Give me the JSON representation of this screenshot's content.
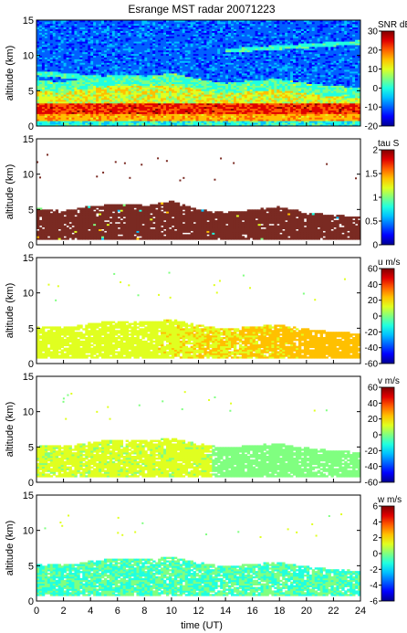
{
  "title": "Esrange MST radar 20071223",
  "xlabel": "time (UT)",
  "x_ticks": [
    0,
    2,
    4,
    6,
    8,
    10,
    12,
    14,
    16,
    18,
    20,
    22,
    24
  ],
  "y_ticks": [
    0,
    5,
    10,
    15
  ],
  "colors": {
    "jet": [
      "#00008f",
      "#0000ff",
      "#0060ff",
      "#00c0ff",
      "#20ffe0",
      "#80ff80",
      "#e0ff20",
      "#ffc000",
      "#ff6000",
      "#e00000",
      "#800000"
    ],
    "tau_fill": "#7a2a22",
    "frame": "#000000"
  },
  "chart_data": [
    {
      "type": "heatmap",
      "panel": "SNR",
      "ylabel": "altitude (km)",
      "xlim": [
        0,
        24
      ],
      "ylim": [
        0,
        15
      ],
      "colorbar": {
        "label": "SNR dB",
        "range": [
          -20,
          30
        ],
        "ticks": [
          30,
          20,
          10,
          0,
          -10,
          -20
        ]
      },
      "grid": false
    },
    {
      "type": "heatmap",
      "panel": "tau",
      "ylabel": "altitude (km)",
      "xlim": [
        0,
        24
      ],
      "ylim": [
        0,
        15
      ],
      "colorbar": {
        "label": "tau S",
        "range": [
          0,
          2
        ],
        "ticks": [
          2,
          1.5,
          1,
          0.5,
          0
        ]
      },
      "echo_layer_top_km": [
        5.2,
        4.8,
        5.5,
        5.8,
        5.6,
        6.2,
        5.0,
        4.6,
        5.0,
        5.4,
        4.6,
        4.2,
        4.0
      ],
      "grid": false
    },
    {
      "type": "heatmap",
      "panel": "u",
      "ylabel": "altitude (km)",
      "xlim": [
        0,
        24
      ],
      "ylim": [
        0,
        15
      ],
      "colorbar": {
        "label": "u m/s",
        "range": [
          -60,
          60
        ],
        "ticks": [
          60,
          40,
          20,
          0,
          -20,
          -40,
          -60
        ]
      },
      "grid": false
    },
    {
      "type": "heatmap",
      "panel": "v",
      "ylabel": "altitude (km)",
      "xlim": [
        0,
        24
      ],
      "ylim": [
        0,
        15
      ],
      "colorbar": {
        "label": "v m/s",
        "range": [
          -60,
          60
        ],
        "ticks": [
          60,
          40,
          20,
          0,
          -20,
          -40,
          -60
        ]
      },
      "grid": false
    },
    {
      "type": "heatmap",
      "panel": "w",
      "ylabel": "altitude (km)",
      "xlim": [
        0,
        24
      ],
      "ylim": [
        0,
        15
      ],
      "colorbar": {
        "label": "w m/s",
        "range": [
          -6,
          6
        ],
        "ticks": [
          6,
          4,
          2,
          0,
          -2,
          -4,
          -6
        ]
      },
      "grid": false
    }
  ]
}
